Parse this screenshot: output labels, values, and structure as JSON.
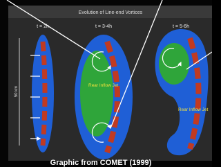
{
  "header": {
    "title": "Evolution of Line-end Vortices"
  },
  "panels": [
    {
      "label": "t = 2h"
    },
    {
      "label": "t = 3-4h",
      "annotation": "Rear Inflow Jet"
    },
    {
      "label": "t = 5-6h",
      "annotation": "Rear Inflow Jet"
    }
  ],
  "scale_label": "50 km",
  "caption": "Graphic from COMET (1999)"
}
